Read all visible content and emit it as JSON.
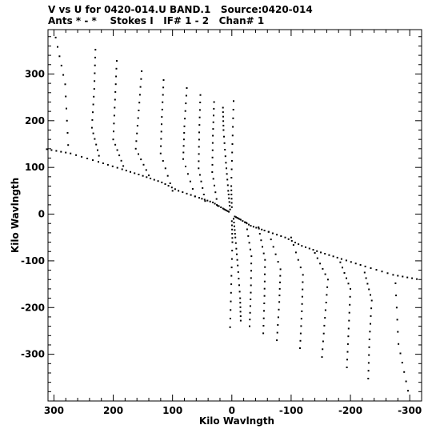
{
  "header": {
    "title_line1": "V vs U for 0420-014.U BAND.1   Source:0420-014",
    "title_line2": "Ants * - *    Stokes I   IF# 1 - 2   Chan# 1"
  },
  "chart_data": {
    "type": "scatter",
    "title": "V vs U for 0420-014.U BAND.1   Source:0420-014",
    "subtitle": "Ants * - *    Stokes I   IF# 1 - 2   Chan# 1",
    "xlabel": "Kilo Wavlngth",
    "ylabel": "Kilo Wavlngth",
    "xlim": [
      310,
      -320
    ],
    "ylim": [
      -400,
      395
    ],
    "x_reversed": true,
    "x_ticks": [
      300,
      200,
      100,
      0,
      -100,
      -200,
      -300
    ],
    "x_tick_labels": [
      "300",
      "200",
      "100",
      "0",
      "-100",
      "-200",
      "-300"
    ],
    "y_ticks": [
      300,
      200,
      100,
      0,
      -100,
      -200,
      -300
    ],
    "y_tick_labels": [
      "300",
      "200",
      "100",
      "0",
      "-100",
      "-200",
      "-300"
    ],
    "grid": false,
    "colors": {
      "points": "#000000",
      "axes": "#000000"
    },
    "tracks": [
      {
        "u": [
          297,
          281,
          276
        ],
        "v": [
          378,
          278,
          148
        ]
      },
      {
        "u": [
          230,
          232,
          236,
          224
        ],
        "v": [
          352,
          268,
          185,
          125
        ]
      },
      {
        "u": [
          194,
          197,
          200,
          183
        ],
        "v": [
          328,
          245,
          160,
          103
        ]
      },
      {
        "u": [
          152,
          157,
          162,
          140
        ],
        "v": [
          306,
          222,
          140,
          83
        ]
      },
      {
        "u": [
          115,
          118,
          120,
          100
        ],
        "v": [
          287,
          208,
          130,
          50
        ]
      },
      {
        "u": [
          76,
          80,
          82,
          62
        ],
        "v": [
          270,
          188,
          118,
          38
        ]
      },
      {
        "u": [
          53,
          55,
          56,
          45
        ],
        "v": [
          255,
          175,
          98,
          28
        ]
      },
      {
        "u": [
          30,
          32,
          33,
          24
        ],
        "v": [
          240,
          168,
          90,
          18
        ]
      },
      {
        "u": [
          15,
          14,
          10,
          6,
          3
        ],
        "v": [
          228,
          180,
          110,
          50,
          10
        ]
      },
      {
        "u": [
          -3,
          -1,
          1,
          0
        ],
        "v": [
          242,
          150,
          60,
          15
        ]
      },
      {
        "u": [
          -297,
          -281,
          -276
        ],
        "v": [
          -378,
          -278,
          -148
        ]
      },
      {
        "u": [
          -230,
          -232,
          -236,
          -224
        ],
        "v": [
          -352,
          -268,
          -185,
          -125
        ]
      },
      {
        "u": [
          -194,
          -197,
          -200,
          -183
        ],
        "v": [
          -328,
          -245,
          -160,
          -103
        ]
      },
      {
        "u": [
          -152,
          -157,
          -162,
          -140
        ],
        "v": [
          -306,
          -222,
          -140,
          -83
        ]
      },
      {
        "u": [
          -115,
          -118,
          -120,
          -100
        ],
        "v": [
          -287,
          -208,
          -130,
          -50
        ]
      },
      {
        "u": [
          -76,
          -80,
          -82,
          -62
        ],
        "v": [
          -270,
          -188,
          -118,
          -38
        ]
      },
      {
        "u": [
          -53,
          -55,
          -56,
          -45
        ],
        "v": [
          -255,
          -175,
          -98,
          -28
        ]
      },
      {
        "u": [
          -30,
          -32,
          -33,
          -24
        ],
        "v": [
          -240,
          -168,
          -90,
          -18
        ]
      },
      {
        "u": [
          -15,
          -14,
          -10,
          -6,
          -3
        ],
        "v": [
          -228,
          -180,
          -110,
          -50,
          -10
        ]
      },
      {
        "u": [
          3,
          1,
          -1,
          0
        ],
        "v": [
          -242,
          -150,
          -60,
          -15
        ]
      },
      {
        "u": [
          312,
          272,
          225,
          185,
          150,
          118,
          90,
          55,
          32,
          15,
          5
        ],
        "v": [
          139,
          130,
          112,
          96,
          82,
          68,
          50,
          35,
          25,
          12,
          5
        ]
      },
      {
        "u": [
          -312,
          -272,
          -225,
          -185,
          -150,
          -118,
          -90,
          -55,
          -32,
          -15,
          -5
        ],
        "v": [
          -139,
          -130,
          -112,
          -96,
          -82,
          -68,
          -50,
          -35,
          -25,
          -12,
          -5
        ]
      }
    ],
    "points_per_segment": 5
  }
}
